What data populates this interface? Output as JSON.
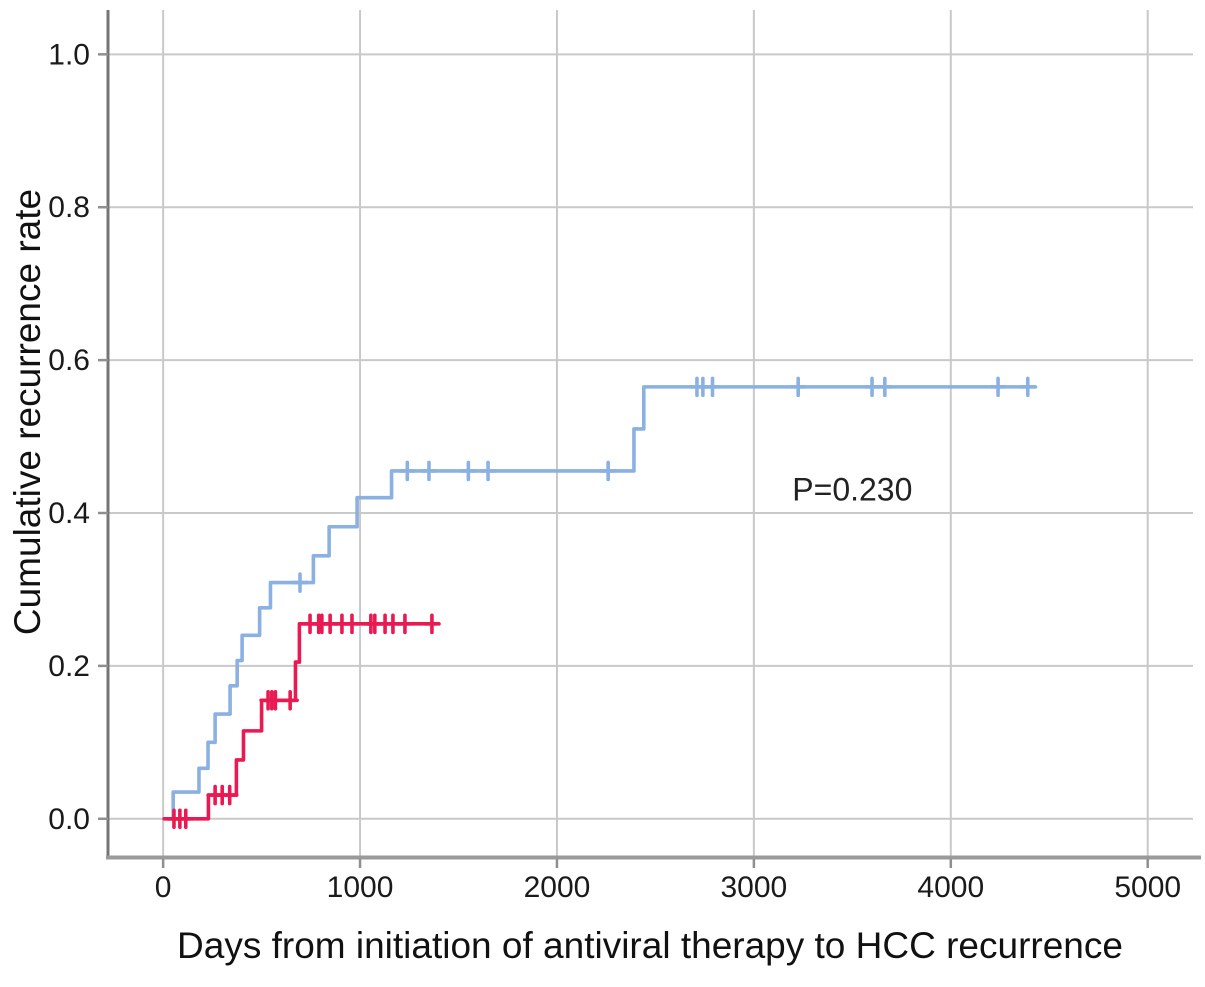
{
  "figure": {
    "title": "",
    "p_value_label": "P=0.230"
  },
  "chart_data": {
    "type": "line",
    "subtype": "kaplan-meier-cumulative-incidence-step",
    "title": "",
    "xlabel": "Days from initiation of antiviral therapy to HCC recurrence",
    "ylabel": "Cumulative recurrence rate",
    "xlim": [
      -280,
      5230
    ],
    "ylim": [
      -0.05,
      1.058
    ],
    "grid": true,
    "legend": "none",
    "annotation": {
      "text": "P=0.230",
      "x": 3500,
      "y": 0.431
    },
    "x_ticks": [
      {
        "value": 0,
        "label": "0"
      },
      {
        "value": 1000,
        "label": "1000"
      },
      {
        "value": 2000,
        "label": "2000"
      },
      {
        "value": 3000,
        "label": "3000"
      },
      {
        "value": 4000,
        "label": "4000"
      },
      {
        "value": 5000,
        "label": "5000"
      }
    ],
    "y_ticks": [
      {
        "value": 0.0,
        "label": "0.0"
      },
      {
        "value": 0.2,
        "label": "0.2"
      },
      {
        "value": 0.4,
        "label": "0.4"
      },
      {
        "value": 0.6,
        "label": "0.6"
      },
      {
        "value": 0.8,
        "label": "0.8"
      },
      {
        "value": 1.0,
        "label": "1.0"
      }
    ],
    "colors": {
      "blue_series": "#8bb0e2",
      "red_series": "#e81a51",
      "gridline": "#c9c9c9",
      "axis": "#757575"
    },
    "series": [
      {
        "name": "blue-series",
        "color": "#8bb0e2",
        "steps": [
          [
            25,
            0.0
          ],
          [
            51,
            0.035
          ],
          [
            182,
            0.066
          ],
          [
            228,
            0.1
          ],
          [
            264,
            0.137
          ],
          [
            340,
            0.174
          ],
          [
            376,
            0.207
          ],
          [
            401,
            0.24
          ],
          [
            490,
            0.276
          ],
          [
            545,
            0.309
          ],
          [
            763,
            0.344
          ],
          [
            843,
            0.382
          ],
          [
            985,
            0.42
          ],
          [
            1160,
            0.455
          ],
          [
            2391,
            0.51
          ],
          [
            2441,
            0.565
          ]
        ],
        "end_x": 4430,
        "censors": [
          [
            695,
            0.309
          ],
          [
            1240,
            0.455
          ],
          [
            1350,
            0.455
          ],
          [
            1550,
            0.455
          ],
          [
            1650,
            0.455
          ],
          [
            2260,
            0.455
          ],
          [
            2711,
            0.565
          ],
          [
            2741,
            0.565
          ],
          [
            2790,
            0.565
          ],
          [
            3225,
            0.565
          ],
          [
            3600,
            0.565
          ],
          [
            3665,
            0.565
          ],
          [
            4240,
            0.565
          ],
          [
            4391,
            0.565
          ]
        ]
      },
      {
        "name": "red-series",
        "color": "#e81a51",
        "steps": [
          [
            5,
            0.0
          ],
          [
            230,
            0.031
          ],
          [
            372,
            0.077
          ],
          [
            408,
            0.115
          ],
          [
            500,
            0.155
          ],
          [
            672,
            0.205
          ],
          [
            692,
            0.255
          ]
        ],
        "end_x": 1385,
        "censors": [
          [
            55,
            0.0
          ],
          [
            85,
            0.0
          ],
          [
            115,
            0.0
          ],
          [
            264,
            0.031
          ],
          [
            300,
            0.031
          ],
          [
            338,
            0.031
          ],
          [
            533,
            0.155
          ],
          [
            552,
            0.155
          ],
          [
            570,
            0.155
          ],
          [
            645,
            0.155
          ],
          [
            746,
            0.255
          ],
          [
            790,
            0.255
          ],
          [
            806,
            0.255
          ],
          [
            848,
            0.255
          ],
          [
            908,
            0.255
          ],
          [
            959,
            0.255
          ],
          [
            1055,
            0.255
          ],
          [
            1075,
            0.255
          ],
          [
            1127,
            0.255
          ],
          [
            1167,
            0.255
          ],
          [
            1228,
            0.255
          ],
          [
            1365,
            0.255
          ]
        ]
      }
    ]
  }
}
